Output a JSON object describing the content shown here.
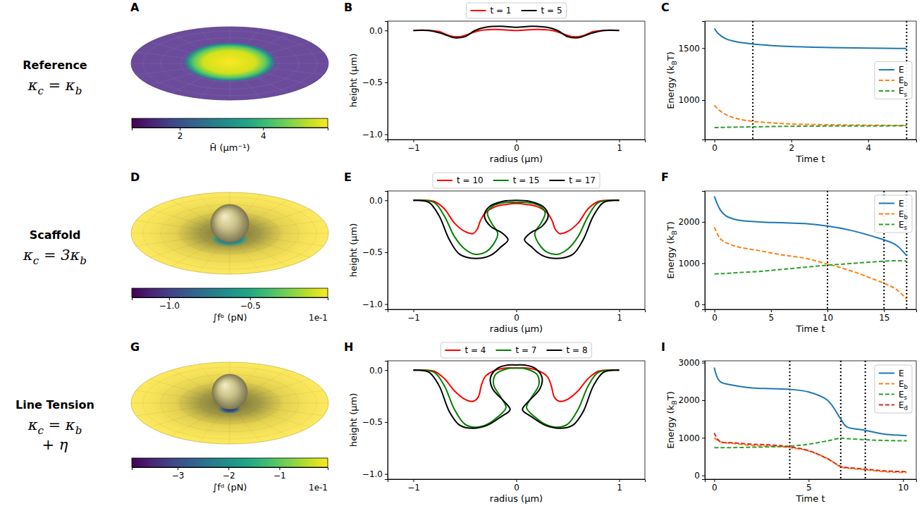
{
  "chart_data": [
    {
      "type": "surface",
      "panel": "A",
      "annotations": [
        "Reference",
        "κc = κb"
      ],
      "colorbar": {
        "label": "H̄ (μm⁻¹)",
        "range": [
          0.85,
          5.55
        ],
        "ticks": [
          2,
          4
        ]
      }
    },
    {
      "type": "line",
      "panel": "B",
      "xlabel": "radius (μm)",
      "ylabel": "height (μm)",
      "xlim": [
        -1.25,
        1.25
      ],
      "ylim": [
        -1.05,
        0.09
      ],
      "xticks": [
        {
          "value": -1,
          "label": "−1"
        },
        0,
        1
      ],
      "yticks": [
        {
          "value": -1,
          "label": "−1.0"
        },
        {
          "value": -0.5,
          "label": "−0.5"
        },
        {
          "value": 0,
          "label": "0.0"
        }
      ],
      "legend": "top",
      "series": [
        {
          "name": "t = 1",
          "color": "#ff0000",
          "line_style": "solid",
          "x": [
            -1,
            -0.85,
            -0.75,
            -0.65,
            -0.55,
            -0.45,
            -0.35,
            -0.2,
            0,
            0.2,
            0.35,
            0.45,
            0.55,
            0.65,
            0.75,
            0.85,
            1
          ],
          "values": [
            0,
            0,
            -0.01,
            -0.05,
            -0.06,
            -0.03,
            0,
            0.01,
            0,
            0.01,
            0,
            -0.03,
            -0.06,
            -0.05,
            -0.01,
            0,
            0
          ]
        },
        {
          "name": "t = 5",
          "color": "#000000",
          "line_style": "solid",
          "x": [
            -1,
            -0.85,
            -0.72,
            -0.6,
            -0.5,
            -0.4,
            -0.3,
            -0.15,
            0,
            0.15,
            0.3,
            0.4,
            0.5,
            0.6,
            0.72,
            0.85,
            1
          ],
          "values": [
            0,
            0,
            -0.03,
            -0.07,
            -0.06,
            0,
            0.03,
            0.04,
            0.03,
            0.04,
            0.03,
            0,
            -0.06,
            -0.07,
            -0.03,
            0,
            0
          ]
        }
      ]
    },
    {
      "type": "line",
      "panel": "C",
      "xlabel": "Time t",
      "ylabel": "Energy (kBT)",
      "xlim": [
        -0.25,
        5.25
      ],
      "ylim": [
        620,
        1760
      ],
      "xticks": [
        0,
        2,
        4
      ],
      "yticks": [
        1000,
        1500
      ],
      "legend": "center right",
      "vlines": [
        1,
        5
      ],
      "x": [
        0,
        0.1,
        0.3,
        0.6,
        1,
        1.5,
        2,
        3,
        4,
        5
      ],
      "series": [
        {
          "name": "E",
          "color": "#1f77b4",
          "line_style": "solid",
          "values": [
            1690,
            1640,
            1590,
            1560,
            1540,
            1525,
            1515,
            1505,
            1500,
            1497
          ]
        },
        {
          "name": "Eb",
          "color": "#ff7f0e",
          "line_style": "dashed",
          "values": [
            950,
            910,
            860,
            820,
            795,
            780,
            770,
            762,
            758,
            755
          ]
        },
        {
          "name": "Es",
          "color": "#2ca02c",
          "line_style": "dashed",
          "values": [
            735,
            736,
            738,
            740,
            742,
            745,
            748,
            750,
            751,
            752
          ]
        }
      ]
    },
    {
      "type": "surface",
      "panel": "D",
      "annotations": [
        "Scaffold",
        "κc = 3κb"
      ],
      "colorbar": {
        "label": "∫fᵇ (pN)",
        "range": [
          -1.23,
          -0.02
        ],
        "ticks": [
          {
            "value": -1.0,
            "label": "−1.0"
          },
          {
            "value": -0.5,
            "label": "−0.5"
          }
        ],
        "offset": "1e-1"
      }
    },
    {
      "type": "line",
      "panel": "E",
      "xlabel": "radius (μm)",
      "ylabel": "height (μm)",
      "xlim": [
        -1.25,
        1.25
      ],
      "ylim": [
        -1.05,
        0.09
      ],
      "xticks": [
        {
          "value": -1,
          "label": "−1"
        },
        0,
        1
      ],
      "yticks": [
        {
          "value": -1,
          "label": "−1.0"
        },
        {
          "value": -0.5,
          "label": "−0.5"
        },
        {
          "value": 0,
          "label": "0.0"
        }
      ],
      "legend": "top",
      "series": [
        {
          "name": "t = 10",
          "color": "#ff0000",
          "line_style": "solid",
          "x": [
            -1,
            -0.8,
            -0.7,
            -0.6,
            -0.5,
            -0.42,
            -0.38,
            -0.35,
            -0.3,
            -0.2,
            -0.1,
            0,
            0.1,
            0.2,
            0.3,
            0.35,
            0.38,
            0.42,
            0.5,
            0.6,
            0.7,
            0.8,
            1
          ],
          "values": [
            0,
            -0.01,
            -0.08,
            -0.22,
            -0.3,
            -0.32,
            -0.28,
            -0.2,
            -0.12,
            -0.06,
            -0.04,
            -0.03,
            -0.04,
            -0.06,
            -0.12,
            -0.2,
            -0.28,
            -0.32,
            -0.3,
            -0.22,
            -0.08,
            -0.01,
            0
          ]
        },
        {
          "name": "t = 15",
          "color": "#008000",
          "line_style": "solid",
          "x": [
            -1,
            -0.8,
            -0.7,
            -0.6,
            -0.5,
            -0.4,
            -0.3,
            -0.22,
            -0.18,
            -0.24,
            -0.28,
            -0.22,
            -0.1,
            0,
            0.1,
            0.22,
            0.28,
            0.24,
            0.18,
            0.22,
            0.3,
            0.4,
            0.5,
            0.6,
            0.7,
            0.8,
            1
          ],
          "values": [
            0,
            -0.02,
            -0.15,
            -0.35,
            -0.47,
            -0.52,
            -0.5,
            -0.42,
            -0.32,
            -0.22,
            -0.12,
            -0.05,
            -0.02,
            -0.02,
            -0.02,
            -0.05,
            -0.12,
            -0.22,
            -0.32,
            -0.42,
            -0.5,
            -0.52,
            -0.47,
            -0.35,
            -0.15,
            -0.02,
            0
          ]
        },
        {
          "name": "t = 17",
          "color": "#000000",
          "line_style": "solid",
          "x": [
            -1,
            -0.85,
            -0.75,
            -0.65,
            -0.55,
            -0.4,
            -0.25,
            -0.15,
            -0.08,
            -0.13,
            -0.25,
            -0.31,
            -0.26,
            -0.13,
            0,
            0.13,
            0.26,
            0.31,
            0.25,
            0.13,
            0.08,
            0.15,
            0.25,
            0.4,
            0.55,
            0.65,
            0.75,
            0.85,
            1
          ],
          "values": [
            0,
            -0.02,
            -0.15,
            -0.38,
            -0.52,
            -0.56,
            -0.53,
            -0.45,
            -0.38,
            -0.32,
            -0.25,
            -0.15,
            -0.06,
            -0.01,
            0,
            -0.01,
            -0.06,
            -0.15,
            -0.25,
            -0.32,
            -0.38,
            -0.45,
            -0.53,
            -0.56,
            -0.52,
            -0.38,
            -0.15,
            -0.02,
            0
          ]
        }
      ]
    },
    {
      "type": "line",
      "panel": "F",
      "xlabel": "Time t",
      "ylabel": "Energy (kBT)",
      "xlim": [
        -0.85,
        17.85
      ],
      "ylim": [
        -120,
        2750
      ],
      "xticks": [
        0,
        5,
        10,
        15
      ],
      "yticks": [
        0,
        1000,
        2000
      ],
      "legend": "upper right",
      "vlines": [
        10,
        15,
        17
      ],
      "x": [
        0,
        0.5,
        1,
        2,
        4,
        6,
        8,
        10,
        12,
        14,
        16,
        17
      ],
      "series": [
        {
          "name": "E",
          "color": "#1f77b4",
          "line_style": "solid",
          "values": [
            2620,
            2300,
            2150,
            2050,
            2000,
            1980,
            1960,
            1900,
            1800,
            1650,
            1450,
            1180
          ]
        },
        {
          "name": "Eb",
          "color": "#ff7f0e",
          "line_style": "dashed",
          "values": [
            1870,
            1600,
            1500,
            1400,
            1300,
            1200,
            1120,
            980,
            820,
            620,
            380,
            130
          ]
        },
        {
          "name": "Es",
          "color": "#2ca02c",
          "line_style": "dashed",
          "values": [
            740,
            745,
            750,
            770,
            800,
            850,
            900,
            950,
            990,
            1030,
            1060,
            1050
          ]
        }
      ]
    },
    {
      "type": "surface",
      "panel": "G",
      "annotations": [
        "Line Tension",
        "κc = κb",
        "+ η"
      ],
      "colorbar": {
        "label": "∫fᵈ (pN)",
        "range": [
          -3.9,
          -0.05
        ],
        "ticks": [
          {
            "value": -3,
            "label": "−3"
          },
          {
            "value": -2,
            "label": "−2"
          },
          {
            "value": -1,
            "label": "−1"
          }
        ],
        "offset": "1e-1"
      }
    },
    {
      "type": "line",
      "panel": "H",
      "xlabel": "radius (μm)",
      "ylabel": "height (μm)",
      "xlim": [
        -1.25,
        1.25
      ],
      "ylim": [
        -1.05,
        0.09
      ],
      "xticks": [
        {
          "value": -1,
          "label": "−1"
        },
        0,
        1
      ],
      "yticks": [
        {
          "value": -1,
          "label": "−1.0"
        },
        {
          "value": -0.5,
          "label": "−0.5"
        },
        {
          "value": 0,
          "label": "0.0"
        }
      ],
      "legend": "top",
      "series": [
        {
          "name": "t = 4",
          "color": "#ff0000",
          "line_style": "solid",
          "x": [
            -1,
            -0.8,
            -0.7,
            -0.6,
            -0.5,
            -0.42,
            -0.37,
            -0.34,
            -0.3,
            -0.2,
            -0.1,
            0,
            0.1,
            0.2,
            0.3,
            0.34,
            0.37,
            0.42,
            0.5,
            0.6,
            0.7,
            0.8,
            1
          ],
          "values": [
            0,
            -0.01,
            -0.08,
            -0.2,
            -0.28,
            -0.3,
            -0.26,
            -0.15,
            -0.06,
            0,
            0.02,
            0.02,
            0.02,
            0,
            -0.06,
            -0.15,
            -0.26,
            -0.3,
            -0.28,
            -0.2,
            -0.08,
            -0.01,
            0
          ]
        },
        {
          "name": "t = 7",
          "color": "#008000",
          "line_style": "solid",
          "x": [
            -1,
            -0.8,
            -0.7,
            -0.6,
            -0.5,
            -0.4,
            -0.28,
            -0.18,
            -0.1,
            -0.15,
            -0.22,
            -0.2,
            -0.1,
            0,
            0.1,
            0.2,
            0.22,
            0.15,
            0.1,
            0.18,
            0.28,
            0.4,
            0.5,
            0.6,
            0.7,
            0.8,
            1
          ],
          "values": [
            0,
            -0.02,
            -0.15,
            -0.38,
            -0.52,
            -0.55,
            -0.52,
            -0.45,
            -0.36,
            -0.26,
            -0.14,
            -0.04,
            0.01,
            0.02,
            0.01,
            -0.04,
            -0.14,
            -0.26,
            -0.36,
            -0.45,
            -0.52,
            -0.55,
            -0.52,
            -0.38,
            -0.15,
            -0.02,
            0
          ]
        },
        {
          "name": "t = 8",
          "color": "#000000",
          "line_style": "solid",
          "x": [
            -1,
            -0.85,
            -0.75,
            -0.65,
            -0.55,
            -0.42,
            -0.28,
            -0.15,
            -0.06,
            -0.12,
            -0.23,
            -0.25,
            -0.18,
            -0.08,
            0,
            0.08,
            0.18,
            0.25,
            0.23,
            0.12,
            0.06,
            0.15,
            0.28,
            0.42,
            0.55,
            0.65,
            0.75,
            0.85,
            1
          ],
          "values": [
            0,
            -0.02,
            -0.15,
            -0.4,
            -0.53,
            -0.56,
            -0.53,
            -0.45,
            -0.38,
            -0.3,
            -0.18,
            -0.07,
            0.02,
            0.05,
            0.05,
            0.05,
            0.02,
            -0.07,
            -0.18,
            -0.3,
            -0.38,
            -0.45,
            -0.53,
            -0.56,
            -0.53,
            -0.4,
            -0.15,
            -0.02,
            0
          ]
        }
      ]
    },
    {
      "type": "line",
      "panel": "I",
      "xlabel": "Time t",
      "ylabel": "Energy (kBT)",
      "xlim": [
        -0.5,
        10.7
      ],
      "ylim": [
        -100,
        3050
      ],
      "xticks": [
        0,
        5,
        10
      ],
      "yticks": [
        0,
        1000,
        2000,
        3000
      ],
      "legend": "upper right",
      "vlines": [
        4,
        6.7,
        8
      ],
      "x": [
        0,
        0.3,
        1,
        2,
        3,
        4,
        5,
        6,
        6.7,
        7,
        8,
        9,
        10.2
      ],
      "series": [
        {
          "name": "E",
          "color": "#1f77b4",
          "line_style": "solid",
          "values": [
            2870,
            2500,
            2400,
            2330,
            2310,
            2290,
            2220,
            2000,
            1500,
            1300,
            1200,
            1100,
            1060
          ]
        },
        {
          "name": "Eb",
          "color": "#ff7f0e",
          "line_style": "dashed",
          "values": [
            1000,
            900,
            850,
            800,
            780,
            740,
            650,
            450,
            230,
            200,
            150,
            100,
            80
          ]
        },
        {
          "name": "Es",
          "color": "#2ca02c",
          "line_style": "dashed",
          "values": [
            740,
            740,
            740,
            750,
            760,
            780,
            830,
            920,
            990,
            980,
            950,
            930,
            920
          ]
        },
        {
          "name": "Ed",
          "color": "#d62728",
          "line_style": "dashed",
          "values": [
            1130,
            900,
            870,
            830,
            810,
            760,
            660,
            440,
            240,
            210,
            170,
            120,
            100
          ]
        }
      ]
    }
  ]
}
